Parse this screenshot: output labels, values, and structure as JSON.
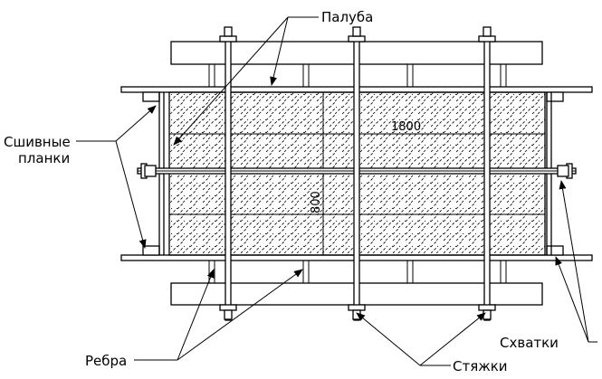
{
  "labels": {
    "paluba": "Палуба",
    "sshivnye_line1": "Сшивные",
    "sshivnye_line2": "планки",
    "rebra": "Ребра",
    "styazhki": "Стяжки",
    "skhvatki": "Схватки"
  },
  "dimensions": {
    "width": "1800",
    "height": "800"
  }
}
